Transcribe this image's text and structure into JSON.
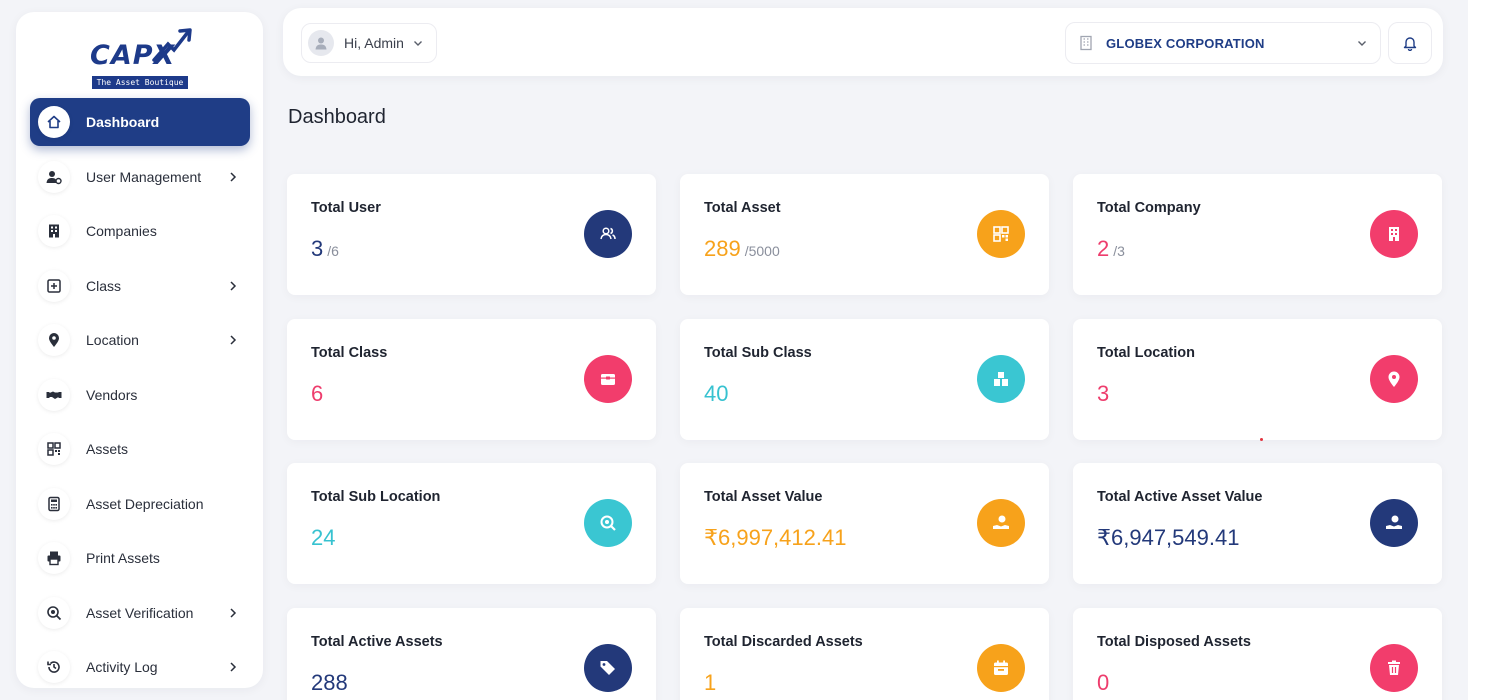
{
  "logo": {
    "text": "CAPX",
    "tagline": "The Asset Boutique"
  },
  "sidebar": {
    "items": [
      {
        "label": "Dashboard",
        "icon": "home-icon",
        "active": true,
        "chevron": false
      },
      {
        "label": "User Management",
        "icon": "user-gear-icon",
        "chevron": true
      },
      {
        "label": "Companies",
        "icon": "building-icon",
        "chevron": false
      },
      {
        "label": "Class",
        "icon": "plus-square-icon",
        "chevron": true
      },
      {
        "label": "Location",
        "icon": "map-pin-icon",
        "chevron": true
      },
      {
        "label": "Vendors",
        "icon": "handshake-icon",
        "chevron": false
      },
      {
        "label": "Assets",
        "icon": "qr-code-icon",
        "chevron": false
      },
      {
        "label": "Asset Depreciation",
        "icon": "calculator-icon",
        "chevron": false
      },
      {
        "label": "Print Assets",
        "icon": "printer-icon",
        "chevron": false
      },
      {
        "label": "Asset Verification",
        "icon": "search-check-icon",
        "chevron": true
      },
      {
        "label": "Activity Log",
        "icon": "history-icon",
        "chevron": true
      }
    ]
  },
  "header": {
    "user_greeting": "Hi, Admin",
    "company": "GLOBEX CORPORATION"
  },
  "page": {
    "title": "Dashboard"
  },
  "cards": [
    {
      "title": "Total User",
      "value": "3",
      "sub": "/6",
      "color": "#23397a",
      "icon": "users-icon"
    },
    {
      "title": "Total Asset",
      "value": "289",
      "sub": "/5000",
      "color": "#f7a21b",
      "icon": "qr-code-icon"
    },
    {
      "title": "Total Company",
      "value": "2",
      "sub": "/3",
      "color": "#ee3d6d",
      "icon": "building-icon"
    },
    {
      "title": "Total Class",
      "value": "6",
      "sub": "",
      "color": "#ee3d6d",
      "icon": "box-icon"
    },
    {
      "title": "Total Sub Class",
      "value": "40",
      "sub": "",
      "color": "#37c2d0",
      "icon": "boxes-icon"
    },
    {
      "title": "Total Location",
      "value": "3",
      "sub": "",
      "color": "#ee3d6d",
      "icon": "map-pin-icon"
    },
    {
      "title": "Total Sub Location",
      "value": "24",
      "sub": "",
      "color": "#37c2d0",
      "icon": "search-location-icon"
    },
    {
      "title": "Total Asset Value",
      "value": "₹6,997,412.41",
      "sub": "",
      "color": "#f7a21b",
      "icon": "hand-coin-icon"
    },
    {
      "title": "Total Active Asset Value",
      "value": "₹6,947,549.41",
      "sub": "",
      "color": "#23397a",
      "icon": "hand-coin-icon"
    },
    {
      "title": "Total Active Assets",
      "value": "288",
      "sub": "",
      "color": "#23397a",
      "icon": "tags-icon"
    },
    {
      "title": "Total Discarded Assets",
      "value": "1",
      "sub": "",
      "color": "#f7a21b",
      "icon": "calendar-icon"
    },
    {
      "title": "Total Disposed Assets",
      "value": "0",
      "sub": "",
      "color": "#ee3d6d",
      "icon": "trash-icon"
    }
  ]
}
